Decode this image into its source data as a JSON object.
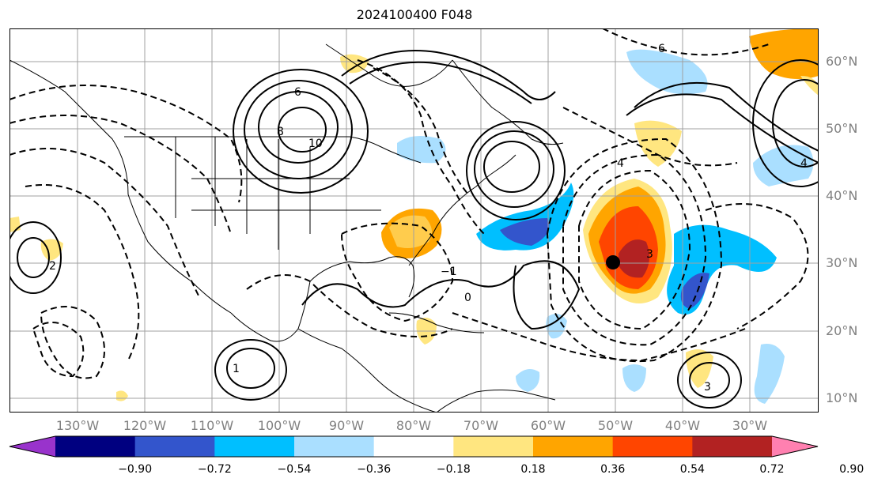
{
  "title": "2024100400 F048",
  "longitude_labels": [
    "130°W",
    "120°W",
    "110°W",
    "100°W",
    "90°W",
    "80°W",
    "70°W",
    "60°W",
    "50°W",
    "40°W",
    "30°W"
  ],
  "latitude_labels": [
    "60°N",
    "50°N",
    "40°N",
    "30°N",
    "20°N",
    "10°N"
  ],
  "colorbar": {
    "ticks": [
      "−0.90",
      "−0.72",
      "−0.54",
      "−0.36",
      "−0.18",
      "0.18",
      "0.36",
      "0.54",
      "0.72",
      "0.90"
    ],
    "colors": [
      "#9933cc",
      "#000080",
      "#3355cc",
      "#00bfff",
      "#aadfff",
      "#ffffff",
      "#ffe680",
      "#ffa500",
      "#ff4500",
      "#b22222",
      "#ff80b0"
    ]
  },
  "contour_labels": [
    "6",
    "8",
    "10",
    "4",
    "2",
    "3",
    "0",
    "1",
    "−1"
  ],
  "colors": {
    "land_outline": "#000000",
    "grid": "#a0a0a0",
    "label_gray": "#808080"
  }
}
